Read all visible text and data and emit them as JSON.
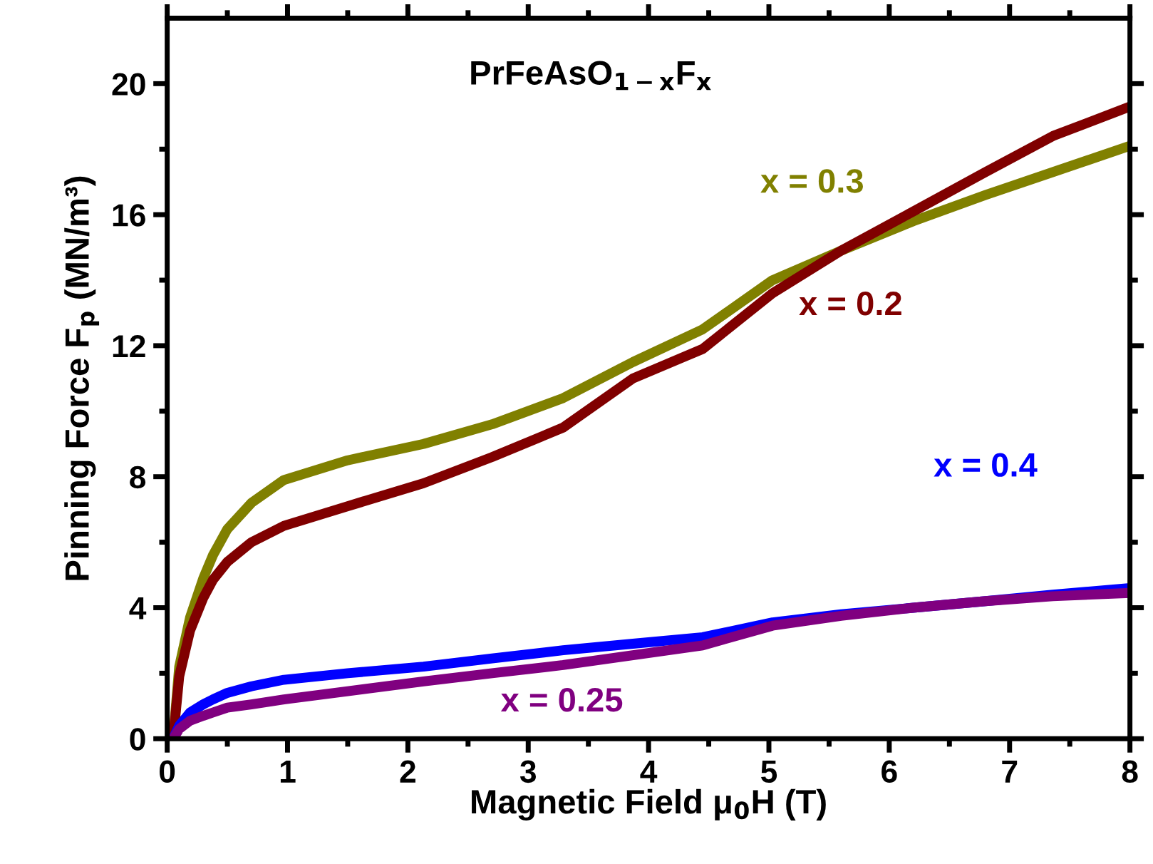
{
  "chart_data": {
    "type": "line",
    "xlabel": "Magnetic Field μ$_{0}$H (T)",
    "ylabel": "Pinning Force F$_{p}$ (MN/m³)",
    "annotations": [
      "PrFeAsO$_{1−x}$F$_{x}$"
    ],
    "x": [
      0.05,
      0.1,
      0.19,
      0.3,
      0.38,
      0.5,
      0.7,
      0.97,
      1.5,
      2.13,
      2.7,
      3.29,
      3.87,
      4.45,
      5.03,
      5.6,
      6.2,
      6.8,
      7.36,
      8
    ],
    "series": [
      {
        "name": "x = 0.3",
        "color": "#808000",
        "values": [
          0,
          2.2,
          3.7,
          4.9,
          5.6,
          6.4,
          7.2,
          7.9,
          8.5,
          9.0,
          9.6,
          10.4,
          11.5,
          12.5,
          14.0,
          14.9,
          15.8,
          16.6,
          17.3,
          18.1
        ]
      },
      {
        "name": "x = 0.2",
        "color": "#800000",
        "values": [
          0,
          1.9,
          3.3,
          4.3,
          4.85,
          5.4,
          6.0,
          6.5,
          7.1,
          7.8,
          8.6,
          9.5,
          11.0,
          11.9,
          13.6,
          14.9,
          16.1,
          17.3,
          18.4,
          19.3
        ]
      },
      {
        "name": "x = 0.4",
        "color": "#0000ff",
        "values": [
          0,
          0.4,
          0.8,
          1.05,
          1.2,
          1.4,
          1.6,
          1.8,
          2.0,
          2.2,
          2.45,
          2.7,
          2.9,
          3.1,
          3.55,
          3.8,
          4.0,
          4.2,
          4.4,
          4.6
        ]
      },
      {
        "name": "x = 0.25",
        "color": "#800080",
        "values": [
          0,
          0.3,
          0.55,
          0.7,
          0.8,
          0.95,
          1.05,
          1.2,
          1.45,
          1.75,
          2.0,
          2.25,
          2.55,
          2.85,
          3.45,
          3.75,
          4.0,
          4.2,
          4.35,
          4.45
        ]
      }
    ],
    "xlim": [
      0,
      8
    ],
    "ylim": [
      0,
      22
    ],
    "xticks": [
      0,
      {
        "value": 0.5,
        "label": null
      },
      1,
      {
        "value": 1.5,
        "label": null
      },
      2,
      {
        "value": 2.5,
        "label": null
      },
      3,
      {
        "value": 3.5,
        "label": null
      },
      4,
      {
        "value": 4.5,
        "label": null
      },
      5,
      {
        "value": 5.5,
        "label": null
      },
      6,
      {
        "value": 6.5,
        "label": null
      },
      7,
      {
        "value": 7.5,
        "label": null
      },
      8
    ],
    "yticks": [
      0,
      {
        "value": 2,
        "label": null
      },
      4,
      {
        "value": 6,
        "label": null
      },
      8,
      {
        "value": 10,
        "label": null
      },
      12,
      {
        "value": 14,
        "label": null
      },
      16,
      {
        "value": 18,
        "label": null
      },
      20
    ],
    "grid": false,
    "legend": false,
    "marker": "none",
    "line_style": "solid"
  }
}
